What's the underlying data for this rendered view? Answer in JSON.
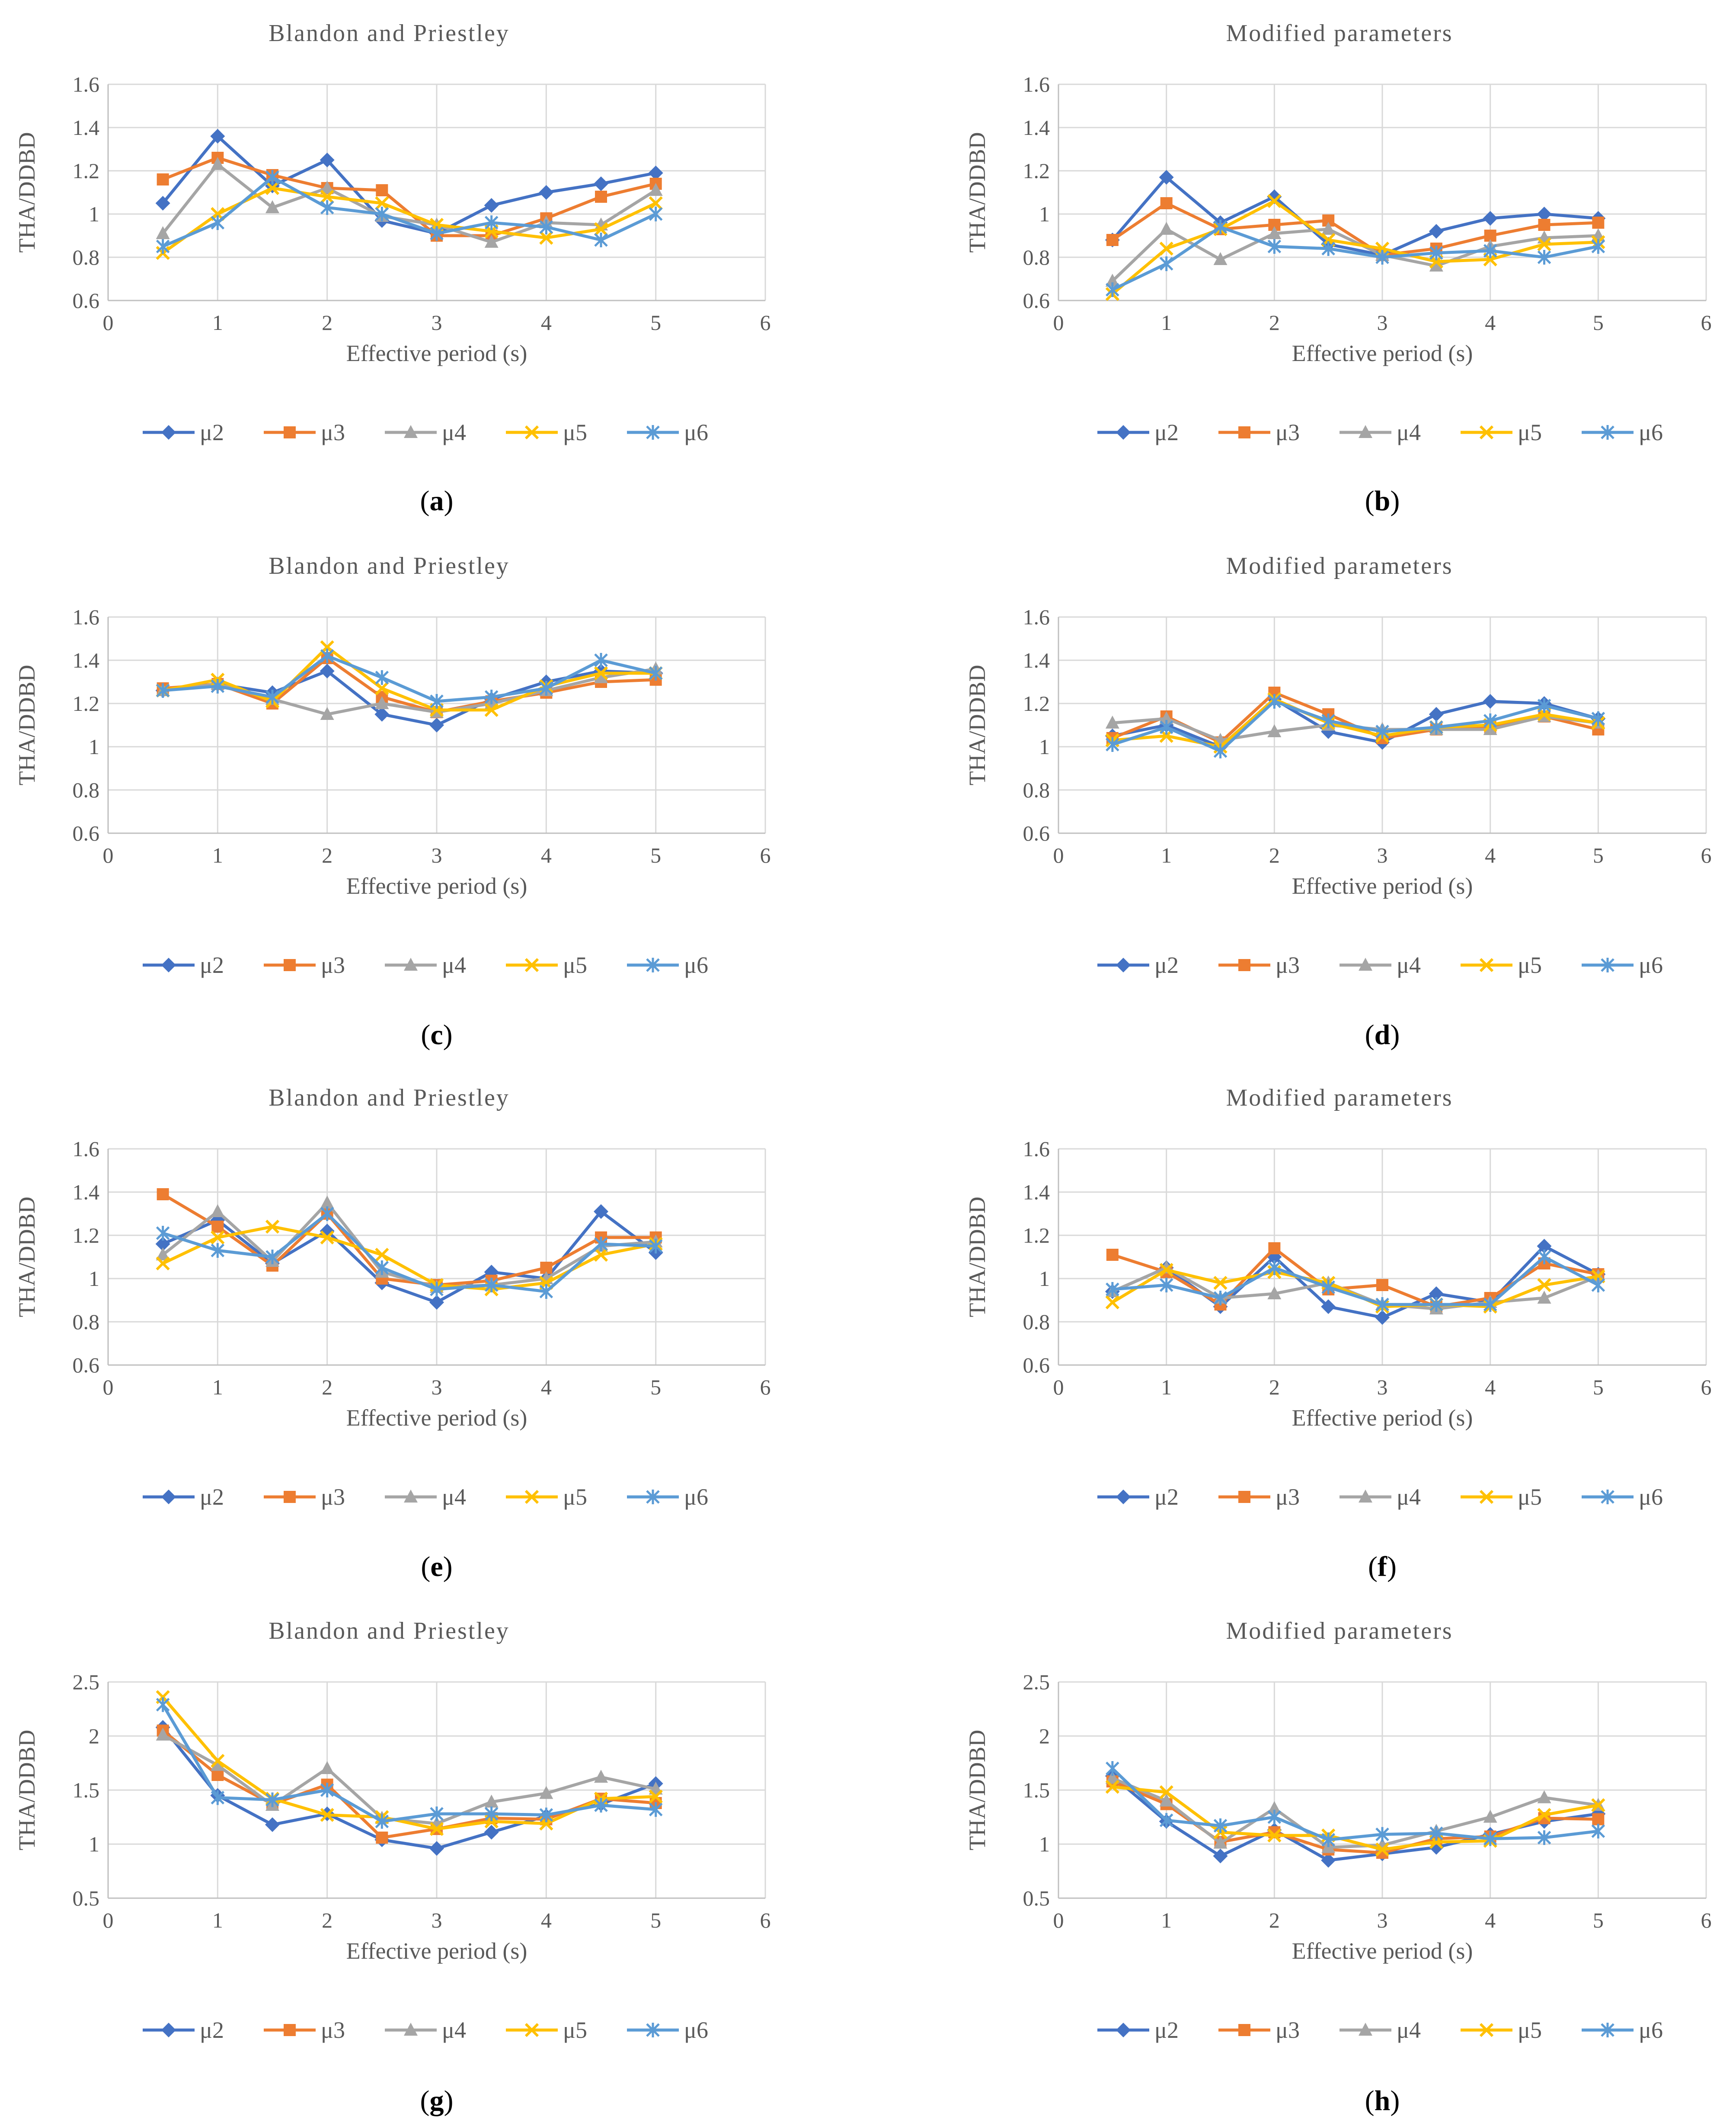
{
  "colors": {
    "μ2": "#4472C4",
    "μ3": "#ED7D31",
    "μ4": "#A5A5A5",
    "μ5": "#FFC000",
    "μ6": "#5B9BD5",
    "grid": "#D9D9D9",
    "axis": "#BFBFBF",
    "text": "#595959"
  },
  "markers": {
    "μ2": "diamond",
    "μ3": "square",
    "μ4": "triangle",
    "μ5": "x",
    "μ6": "star"
  },
  "chart_data": [
    {
      "type": "line",
      "panel": "a",
      "title": "Blandon and Priestley",
      "xlabel": "Effective period (s)",
      "ylabel": "THA/DDBD",
      "xlim": [
        0,
        6
      ],
      "ylim": [
        0.6,
        1.6
      ],
      "xticks": [
        "0",
        "1",
        "2",
        "3",
        "4",
        "5",
        "6"
      ],
      "yticks": [
        "0.6",
        "0.8",
        "1",
        "1.2",
        "1.4",
        "1.6"
      ],
      "x": [
        0.5,
        1,
        1.5,
        2,
        2.5,
        3,
        3.5,
        4,
        4.5,
        5
      ],
      "series": [
        {
          "name": "μ2",
          "values": [
            1.05,
            1.36,
            1.13,
            1.25,
            0.97,
            0.91,
            1.04,
            1.1,
            1.14,
            1.19
          ]
        },
        {
          "name": "μ3",
          "values": [
            1.16,
            1.26,
            1.18,
            1.12,
            1.11,
            0.9,
            0.9,
            0.98,
            1.08,
            1.14
          ]
        },
        {
          "name": "μ4",
          "values": [
            0.91,
            1.23,
            1.03,
            1.12,
            0.99,
            0.95,
            0.87,
            0.96,
            0.95,
            1.11
          ]
        },
        {
          "name": "μ5",
          "values": [
            0.82,
            1.0,
            1.12,
            1.08,
            1.05,
            0.95,
            0.92,
            0.89,
            0.93,
            1.05
          ]
        },
        {
          "name": "μ6",
          "values": [
            0.85,
            0.96,
            1.17,
            1.03,
            1.0,
            0.91,
            0.96,
            0.94,
            0.88,
            1.0
          ]
        }
      ]
    },
    {
      "type": "line",
      "panel": "b",
      "title": "Modified parameters",
      "xlabel": "Effective period (s)",
      "ylabel": "THA/DDBD",
      "xlim": [
        0,
        6
      ],
      "ylim": [
        0.6,
        1.6
      ],
      "xticks": [
        "0",
        "1",
        "2",
        "3",
        "4",
        "5",
        "6"
      ],
      "yticks": [
        "0.6",
        "0.8",
        "1",
        "1.2",
        "1.4",
        "1.6"
      ],
      "x": [
        0.5,
        1,
        1.5,
        2,
        2.5,
        3,
        3.5,
        4,
        4.5,
        5
      ],
      "series": [
        {
          "name": "μ2",
          "values": [
            0.88,
            1.17,
            0.96,
            1.08,
            0.86,
            0.81,
            0.92,
            0.98,
            1.0,
            0.98
          ]
        },
        {
          "name": "μ3",
          "values": [
            0.88,
            1.05,
            0.93,
            0.95,
            0.97,
            0.81,
            0.84,
            0.9,
            0.95,
            0.96
          ]
        },
        {
          "name": "μ4",
          "values": [
            0.69,
            0.93,
            0.79,
            0.91,
            0.93,
            0.81,
            0.76,
            0.85,
            0.89,
            0.9
          ]
        },
        {
          "name": "μ5",
          "values": [
            0.63,
            0.84,
            0.93,
            1.06,
            0.88,
            0.84,
            0.78,
            0.79,
            0.86,
            0.87
          ]
        },
        {
          "name": "μ6",
          "values": [
            0.65,
            0.77,
            0.94,
            0.85,
            0.84,
            0.8,
            0.82,
            0.83,
            0.8,
            0.85
          ]
        }
      ]
    },
    {
      "type": "line",
      "panel": "c",
      "title": "Blandon and Priestley",
      "xlabel": "Effective period (s)",
      "ylabel": "THA/DDBD",
      "xlim": [
        0,
        6
      ],
      "ylim": [
        0.6,
        1.6
      ],
      "xticks": [
        "0",
        "1",
        "2",
        "3",
        "4",
        "5",
        "6"
      ],
      "yticks": [
        "0.6",
        "0.8",
        "1",
        "1.2",
        "1.4",
        "1.6"
      ],
      "x": [
        0.5,
        1,
        1.5,
        2,
        2.5,
        3,
        3.5,
        4,
        4.5,
        5
      ],
      "series": [
        {
          "name": "μ2",
          "values": [
            1.26,
            1.29,
            1.25,
            1.35,
            1.15,
            1.1,
            1.22,
            1.3,
            1.35,
            1.34
          ]
        },
        {
          "name": "μ3",
          "values": [
            1.27,
            1.29,
            1.2,
            1.41,
            1.23,
            1.16,
            1.21,
            1.25,
            1.3,
            1.31
          ]
        },
        {
          "name": "μ4",
          "values": [
            1.26,
            1.29,
            1.22,
            1.15,
            1.2,
            1.16,
            1.2,
            1.26,
            1.32,
            1.36
          ]
        },
        {
          "name": "μ5",
          "values": [
            1.26,
            1.31,
            1.21,
            1.46,
            1.27,
            1.17,
            1.17,
            1.28,
            1.34,
            1.34
          ]
        },
        {
          "name": "μ6",
          "values": [
            1.26,
            1.28,
            1.23,
            1.42,
            1.32,
            1.21,
            1.23,
            1.27,
            1.4,
            1.34
          ]
        }
      ]
    },
    {
      "type": "line",
      "panel": "d",
      "title": "Modified parameters",
      "xlabel": "Effective period (s)",
      "ylabel": "THA/DDBD",
      "xlim": [
        0,
        6
      ],
      "ylim": [
        0.6,
        1.6
      ],
      "xticks": [
        "0",
        "1",
        "2",
        "3",
        "4",
        "5",
        "6"
      ],
      "yticks": [
        "0.6",
        "0.8",
        "1",
        "1.2",
        "1.4",
        "1.6"
      ],
      "x": [
        0.5,
        1,
        1.5,
        2,
        2.5,
        3,
        3.5,
        4,
        4.5,
        5
      ],
      "series": [
        {
          "name": "μ2",
          "values": [
            1.05,
            1.1,
            1.0,
            1.22,
            1.07,
            1.02,
            1.15,
            1.21,
            1.2,
            1.13
          ]
        },
        {
          "name": "μ3",
          "values": [
            1.04,
            1.14,
            1.02,
            1.25,
            1.15,
            1.04,
            1.08,
            1.09,
            1.14,
            1.08
          ]
        },
        {
          "name": "μ4",
          "values": [
            1.11,
            1.13,
            1.03,
            1.07,
            1.1,
            1.08,
            1.08,
            1.08,
            1.14,
            1.11
          ]
        },
        {
          "name": "μ5",
          "values": [
            1.03,
            1.05,
            1.0,
            1.22,
            1.11,
            1.05,
            1.09,
            1.1,
            1.15,
            1.11
          ]
        },
        {
          "name": "μ6",
          "values": [
            1.01,
            1.09,
            0.98,
            1.21,
            1.12,
            1.07,
            1.09,
            1.12,
            1.19,
            1.13
          ]
        }
      ]
    },
    {
      "type": "line",
      "panel": "e",
      "title": "Blandon and Priestley",
      "xlabel": "Effective period (s)",
      "ylabel": "THA/DDBD",
      "xlim": [
        0,
        6
      ],
      "ylim": [
        0.6,
        1.6
      ],
      "xticks": [
        "0",
        "1",
        "2",
        "3",
        "4",
        "5",
        "6"
      ],
      "yticks": [
        "0.6",
        "0.8",
        "1",
        "1.2",
        "1.4",
        "1.6"
      ],
      "x": [
        0.5,
        1,
        1.5,
        2,
        2.5,
        3,
        3.5,
        4,
        4.5,
        5
      ],
      "series": [
        {
          "name": "μ2",
          "values": [
            1.16,
            1.27,
            1.07,
            1.22,
            0.98,
            0.89,
            1.03,
            1.0,
            1.31,
            1.12
          ]
        },
        {
          "name": "μ3",
          "values": [
            1.39,
            1.24,
            1.06,
            1.3,
            1.0,
            0.97,
            0.99,
            1.05,
            1.19,
            1.19
          ]
        },
        {
          "name": "μ4",
          "values": [
            1.11,
            1.31,
            1.08,
            1.35,
            1.03,
            0.96,
            0.97,
            1.0,
            1.15,
            1.17
          ]
        },
        {
          "name": "μ5",
          "values": [
            1.07,
            1.19,
            1.24,
            1.19,
            1.11,
            0.97,
            0.95,
            0.98,
            1.11,
            1.16
          ]
        },
        {
          "name": "μ6",
          "values": [
            1.21,
            1.13,
            1.1,
            1.3,
            1.05,
            0.95,
            0.97,
            0.94,
            1.16,
            1.15
          ]
        }
      ]
    },
    {
      "type": "line",
      "panel": "f",
      "title": "Modified parameters",
      "xlabel": "Effective period (s)",
      "ylabel": "THA/DDBD",
      "xlim": [
        0,
        6
      ],
      "ylim": [
        0.6,
        1.6
      ],
      "xticks": [
        "0",
        "1",
        "2",
        "3",
        "4",
        "5",
        "6"
      ],
      "yticks": [
        "0.6",
        "0.8",
        "1",
        "1.2",
        "1.4",
        "1.6"
      ],
      "x": [
        0.5,
        1,
        1.5,
        2,
        2.5,
        3,
        3.5,
        4,
        4.5,
        5
      ],
      "series": [
        {
          "name": "μ2",
          "values": [
            0.94,
            1.05,
            0.87,
            1.1,
            0.87,
            0.82,
            0.93,
            0.89,
            1.15,
            1.02
          ]
        },
        {
          "name": "μ3",
          "values": [
            1.11,
            1.03,
            0.88,
            1.14,
            0.95,
            0.97,
            0.87,
            0.91,
            1.07,
            1.02
          ]
        },
        {
          "name": "μ4",
          "values": [
            0.94,
            1.05,
            0.91,
            0.93,
            0.98,
            0.88,
            0.86,
            0.89,
            0.91,
            1.01
          ]
        },
        {
          "name": "μ5",
          "values": [
            0.89,
            1.04,
            0.98,
            1.03,
            0.98,
            0.87,
            0.88,
            0.87,
            0.97,
            1.01
          ]
        },
        {
          "name": "μ6",
          "values": [
            0.95,
            0.97,
            0.91,
            1.05,
            0.96,
            0.88,
            0.88,
            0.88,
            1.1,
            0.97
          ]
        }
      ]
    },
    {
      "type": "line",
      "panel": "g",
      "title": "Blandon and Priestley",
      "xlabel": "Effective period (s)",
      "ylabel": "THA/DDBD",
      "xlim": [
        0,
        6
      ],
      "ylim": [
        0.5,
        2.5
      ],
      "xticks": [
        "0",
        "1",
        "2",
        "3",
        "4",
        "5",
        "6"
      ],
      "yticks": [
        "0.5",
        "1",
        "1.5",
        "2",
        "2.5"
      ],
      "x": [
        0.5,
        1,
        1.5,
        2,
        2.5,
        3,
        3.5,
        4,
        4.5,
        5
      ],
      "series": [
        {
          "name": "μ2",
          "values": [
            2.08,
            1.45,
            1.18,
            1.28,
            1.04,
            0.96,
            1.11,
            1.26,
            1.37,
            1.56
          ]
        },
        {
          "name": "μ3",
          "values": [
            2.05,
            1.64,
            1.37,
            1.55,
            1.06,
            1.14,
            1.24,
            1.23,
            1.42,
            1.38
          ]
        },
        {
          "name": "μ4",
          "values": [
            2.01,
            1.73,
            1.36,
            1.7,
            1.24,
            1.19,
            1.39,
            1.47,
            1.62,
            1.51
          ]
        },
        {
          "name": "μ5",
          "values": [
            2.36,
            1.77,
            1.42,
            1.27,
            1.25,
            1.14,
            1.21,
            1.19,
            1.42,
            1.44
          ]
        },
        {
          "name": "μ6",
          "values": [
            2.29,
            1.43,
            1.41,
            1.5,
            1.21,
            1.28,
            1.28,
            1.27,
            1.36,
            1.32
          ]
        }
      ]
    },
    {
      "type": "line",
      "panel": "h",
      "title": "Modified parameters",
      "xlabel": "Effective period (s)",
      "ylabel": "THA/DDBD",
      "xlim": [
        0,
        6
      ],
      "ylim": [
        0.5,
        2.5
      ],
      "xticks": [
        "0",
        "1",
        "2",
        "3",
        "4",
        "5",
        "6"
      ],
      "yticks": [
        "0.5",
        "1",
        "1.5",
        "2",
        "2.5"
      ],
      "x": [
        0.5,
        1,
        1.5,
        2,
        2.5,
        3,
        3.5,
        4,
        4.5,
        5
      ],
      "series": [
        {
          "name": "μ2",
          "values": [
            1.63,
            1.21,
            0.89,
            1.13,
            0.85,
            0.91,
            0.97,
            1.09,
            1.21,
            1.28
          ]
        },
        {
          "name": "μ3",
          "values": [
            1.58,
            1.37,
            1.02,
            1.11,
            0.95,
            0.92,
            1.05,
            1.07,
            1.24,
            1.23
          ]
        },
        {
          "name": "μ4",
          "values": [
            1.61,
            1.4,
            1.01,
            1.33,
            0.97,
            0.99,
            1.12,
            1.25,
            1.43,
            1.36
          ]
        },
        {
          "name": "μ5",
          "values": [
            1.53,
            1.48,
            1.11,
            1.08,
            1.08,
            0.95,
            1.02,
            1.03,
            1.27,
            1.36
          ]
        },
        {
          "name": "μ6",
          "values": [
            1.7,
            1.22,
            1.17,
            1.25,
            1.04,
            1.09,
            1.1,
            1.05,
            1.06,
            1.12
          ]
        }
      ]
    }
  ]
}
